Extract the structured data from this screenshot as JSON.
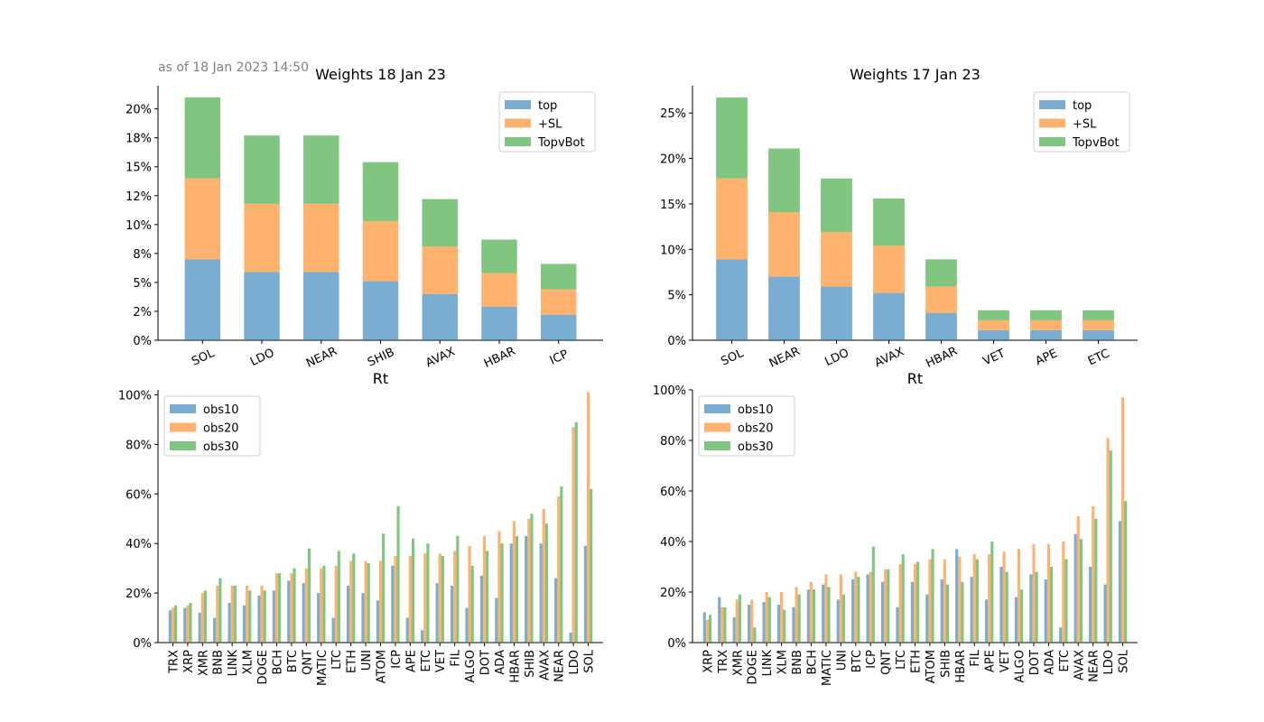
{
  "timestamp": "as of 18 Jan 2023 14:50",
  "colors": {
    "s1": "#1f77b4",
    "s2": "#ff7f0e",
    "s3": "#2ca02c"
  },
  "chart_data": [
    {
      "type": "bar",
      "stacked": true,
      "title": "Weights 18 Jan 23",
      "legend": "top-right",
      "ylim": [
        0,
        0.22
      ],
      "yticks": [
        0,
        0.025,
        0.05,
        0.075,
        0.1,
        0.125,
        0.15,
        0.175,
        0.2
      ],
      "ytick_labels": [
        "0%",
        "2%",
        "5%",
        "8%",
        "10%",
        "12%",
        "15%",
        "18%",
        "20%"
      ],
      "categories": [
        "SOL",
        "LDO",
        "NEAR",
        "SHIB",
        "AVAX",
        "HBAR",
        "ICP"
      ],
      "series": [
        {
          "name": "top",
          "values": [
            0.07,
            0.059,
            0.059,
            0.051,
            0.04,
            0.029,
            0.022
          ]
        },
        {
          "name": "+SL",
          "values": [
            0.07,
            0.059,
            0.059,
            0.052,
            0.041,
            0.029,
            0.022
          ]
        },
        {
          "name": "TopvBot",
          "values": [
            0.07,
            0.059,
            0.059,
            0.051,
            0.041,
            0.029,
            0.022
          ]
        }
      ]
    },
    {
      "type": "bar",
      "stacked": true,
      "title": "Weights 17 Jan 23",
      "legend": "top-right",
      "ylim": [
        0,
        0.28
      ],
      "yticks": [
        0,
        0.05,
        0.1,
        0.15,
        0.2,
        0.25
      ],
      "ytick_labels": [
        "0%",
        "5%",
        "10%",
        "15%",
        "20%",
        "25%"
      ],
      "categories": [
        "SOL",
        "NEAR",
        "LDO",
        "AVAX",
        "HBAR",
        "VET",
        "APE",
        "ETC"
      ],
      "series": [
        {
          "name": "top",
          "values": [
            0.089,
            0.07,
            0.059,
            0.052,
            0.03,
            0.011,
            0.011,
            0.011
          ]
        },
        {
          "name": "+SL",
          "values": [
            0.089,
            0.071,
            0.06,
            0.052,
            0.029,
            0.011,
            0.011,
            0.011
          ]
        },
        {
          "name": "TopvBot",
          "values": [
            0.089,
            0.07,
            0.059,
            0.052,
            0.03,
            0.011,
            0.011,
            0.011
          ]
        }
      ]
    },
    {
      "type": "bar",
      "title": "Rt",
      "legend": "top-left",
      "ylim": [
        0,
        1.02
      ],
      "yticks": [
        0,
        0.2,
        0.4,
        0.6,
        0.8,
        1.0
      ],
      "ytick_labels": [
        "0%",
        "20%",
        "40%",
        "60%",
        "80%",
        "100%"
      ],
      "categories": [
        "TRX",
        "XRP",
        "XMR",
        "BNB",
        "LINK",
        "XLM",
        "DOGE",
        "BCH",
        "BTC",
        "QNT",
        "MATIC",
        "LTC",
        "ETH",
        "UNI",
        "ATOM",
        "ICP",
        "APE",
        "ETC",
        "VET",
        "FIL",
        "ALGO",
        "DOT",
        "ADA",
        "HBAR",
        "SHIB",
        "AVAX",
        "NEAR",
        "LDO",
        "SOL"
      ],
      "series": [
        {
          "name": "obs10",
          "values": [
            0.13,
            0.14,
            0.12,
            0.1,
            0.16,
            0.15,
            0.19,
            0.21,
            0.25,
            0.24,
            0.2,
            0.1,
            0.23,
            0.2,
            0.17,
            0.31,
            0.1,
            0.05,
            0.24,
            0.23,
            0.14,
            0.27,
            0.18,
            0.4,
            0.43,
            0.4,
            0.26,
            0.04,
            0.39
          ]
        },
        {
          "name": "obs20",
          "values": [
            0.14,
            0.15,
            0.2,
            0.23,
            0.23,
            0.23,
            0.23,
            0.28,
            0.28,
            0.3,
            0.3,
            0.31,
            0.33,
            0.33,
            0.33,
            0.35,
            0.35,
            0.36,
            0.36,
            0.37,
            0.39,
            0.43,
            0.45,
            0.49,
            0.5,
            0.54,
            0.59,
            0.87,
            1.01
          ]
        },
        {
          "name": "obs30",
          "values": [
            0.15,
            0.16,
            0.21,
            0.26,
            0.23,
            0.21,
            0.21,
            0.28,
            0.3,
            0.38,
            0.31,
            0.37,
            0.36,
            0.32,
            0.44,
            0.55,
            0.42,
            0.4,
            0.35,
            0.43,
            0.31,
            0.37,
            0.4,
            0.43,
            0.52,
            0.48,
            0.63,
            0.89,
            0.62
          ]
        }
      ]
    },
    {
      "type": "bar",
      "title": "Rt",
      "legend": "top-left",
      "ylim": [
        0,
        1.0
      ],
      "yticks": [
        0,
        0.2,
        0.4,
        0.6,
        0.8,
        1.0
      ],
      "ytick_labels": [
        "0%",
        "20%",
        "40%",
        "60%",
        "80%",
        "100%"
      ],
      "categories": [
        "XRP",
        "TRX",
        "XMR",
        "DOGE",
        "LINK",
        "XLM",
        "BNB",
        "BCH",
        "MATIC",
        "UNI",
        "BTC",
        "ICP",
        "QNT",
        "LTC",
        "ETH",
        "ATOM",
        "SHIB",
        "HBAR",
        "FIL",
        "APE",
        "VET",
        "ALGO",
        "DOT",
        "ADA",
        "ETC",
        "AVAX",
        "NEAR",
        "LDO",
        "SOL"
      ],
      "series": [
        {
          "name": "obs10",
          "values": [
            0.12,
            0.18,
            0.1,
            0.15,
            0.16,
            0.15,
            0.14,
            0.21,
            0.23,
            0.17,
            0.25,
            0.27,
            0.24,
            0.14,
            0.24,
            0.19,
            0.25,
            0.37,
            0.26,
            0.17,
            0.3,
            0.18,
            0.27,
            0.25,
            0.06,
            0.43,
            0.3,
            0.23,
            0.48
          ]
        },
        {
          "name": "obs20",
          "values": [
            0.09,
            0.14,
            0.17,
            0.17,
            0.2,
            0.2,
            0.22,
            0.24,
            0.27,
            0.27,
            0.28,
            0.28,
            0.29,
            0.31,
            0.31,
            0.33,
            0.33,
            0.34,
            0.35,
            0.35,
            0.36,
            0.37,
            0.39,
            0.39,
            0.4,
            0.5,
            0.54,
            0.81,
            0.97
          ]
        },
        {
          "name": "obs30",
          "values": [
            0.11,
            0.14,
            0.19,
            0.06,
            0.18,
            0.13,
            0.19,
            0.21,
            0.22,
            0.19,
            0.26,
            0.38,
            0.29,
            0.35,
            0.32,
            0.37,
            0.23,
            0.24,
            0.33,
            0.4,
            0.28,
            0.21,
            0.28,
            0.3,
            0.33,
            0.41,
            0.49,
            0.76,
            0.56
          ]
        }
      ]
    }
  ]
}
